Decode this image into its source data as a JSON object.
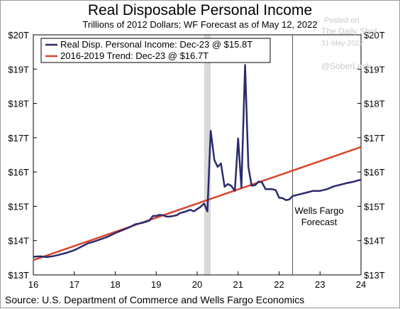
{
  "chart_data": {
    "type": "line",
    "title": "Real Disposable Personal Income",
    "subtitle": "Trillions of 2012 Dollars; WF Forecast as of May 12, 2022",
    "xlim": [
      16,
      24
    ],
    "ylim": [
      13,
      20
    ],
    "x_ticks": [
      "16",
      "17",
      "18",
      "19",
      "20",
      "21",
      "22",
      "23",
      "24"
    ],
    "y_ticks_left": [
      "$13T",
      "$14T",
      "$15T",
      "$16T",
      "$17T",
      "$18T",
      "$19T",
      "$20T"
    ],
    "y_ticks_right": [
      "$13T",
      "$14T",
      "$15T",
      "$16T",
      "$17T",
      "$18T",
      "$19T",
      "$20T"
    ],
    "grid": false,
    "legend_position": "top-left",
    "series": [
      {
        "name": "Real Disp. Personal Income: Dec-23 @ $15.8T",
        "color": "#2b2a6e",
        "points": [
          [
            16.0,
            13.53
          ],
          [
            16.17,
            13.54
          ],
          [
            16.33,
            13.52
          ],
          [
            16.5,
            13.55
          ],
          [
            16.67,
            13.6
          ],
          [
            16.83,
            13.65
          ],
          [
            17.0,
            13.72
          ],
          [
            17.17,
            13.82
          ],
          [
            17.33,
            13.92
          ],
          [
            17.5,
            13.98
          ],
          [
            17.67,
            14.05
          ],
          [
            17.83,
            14.12
          ],
          [
            18.0,
            14.22
          ],
          [
            18.17,
            14.3
          ],
          [
            18.33,
            14.38
          ],
          [
            18.5,
            14.48
          ],
          [
            18.67,
            14.52
          ],
          [
            18.83,
            14.58
          ],
          [
            18.92,
            14.72
          ],
          [
            19.0,
            14.72
          ],
          [
            19.08,
            14.75
          ],
          [
            19.17,
            14.74
          ],
          [
            19.25,
            14.7
          ],
          [
            19.33,
            14.7
          ],
          [
            19.42,
            14.72
          ],
          [
            19.5,
            14.74
          ],
          [
            19.58,
            14.8
          ],
          [
            19.67,
            14.83
          ],
          [
            19.75,
            14.86
          ],
          [
            19.83,
            14.9
          ],
          [
            19.92,
            14.85
          ],
          [
            20.0,
            14.92
          ],
          [
            20.08,
            14.98
          ],
          [
            20.17,
            15.08
          ],
          [
            20.25,
            14.85
          ],
          [
            20.33,
            17.2
          ],
          [
            20.42,
            16.35
          ],
          [
            20.5,
            16.15
          ],
          [
            20.58,
            16.25
          ],
          [
            20.67,
            15.57
          ],
          [
            20.75,
            15.65
          ],
          [
            20.83,
            15.6
          ],
          [
            20.92,
            15.45
          ],
          [
            21.0,
            16.98
          ],
          [
            21.08,
            15.55
          ],
          [
            21.17,
            19.12
          ],
          [
            21.25,
            16.15
          ],
          [
            21.33,
            15.6
          ],
          [
            21.42,
            15.62
          ],
          [
            21.5,
            15.72
          ],
          [
            21.58,
            15.7
          ],
          [
            21.67,
            15.5
          ],
          [
            21.75,
            15.5
          ],
          [
            21.83,
            15.5
          ],
          [
            21.92,
            15.47
          ],
          [
            22.0,
            15.25
          ],
          [
            22.08,
            15.24
          ],
          [
            22.17,
            15.18
          ],
          [
            22.25,
            15.2
          ],
          [
            22.33,
            15.3
          ],
          [
            22.5,
            15.35
          ],
          [
            22.67,
            15.4
          ],
          [
            22.83,
            15.45
          ],
          [
            23.0,
            15.45
          ],
          [
            23.17,
            15.5
          ],
          [
            23.33,
            15.58
          ],
          [
            23.5,
            15.63
          ],
          [
            23.67,
            15.68
          ],
          [
            23.83,
            15.72
          ],
          [
            24.0,
            15.78
          ]
        ]
      },
      {
        "name": "2016-2019 Trend: Dec-23 @ $16.7T",
        "color": "#d9442b",
        "points": [
          [
            16.0,
            13.43
          ],
          [
            24.0,
            16.73
          ]
        ]
      }
    ],
    "shaded_region": [
      20.17,
      20.33
    ],
    "forecast_line_x": 22.33,
    "annotations": [
      "Wells Fargo",
      "Forecast"
    ]
  },
  "source": "Source: U.S. Department of Commerce and Wells Fargo Economics",
  "watermark": {
    "posted": "Posted on",
    "site": "The Daily Shot",
    "date": "31-May-2022",
    "handle": "@SoberLook"
  }
}
